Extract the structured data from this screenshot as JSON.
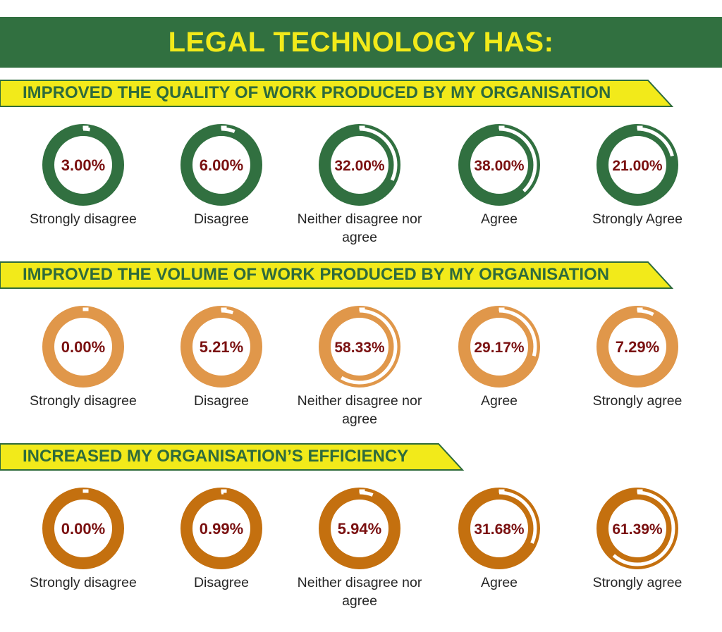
{
  "title": "LEGAL TECHNOLOGY HAS:",
  "colors": {
    "title_bg": "#317040",
    "title_text": "#f2ea1a",
    "banner_fill": "#f2ea1a",
    "banner_text": "#2e6b3c",
    "value_text": "#7a1010",
    "label_text": "#262626"
  },
  "chart_data": [
    {
      "type": "donut",
      "title": "IMPROVED THE QUALITY OF WORK PRODUCED BY MY ORGANISATION",
      "ring_color": "#317040",
      "categories": [
        "Strongly disagree",
        "Disagree",
        "Neither disagree nor agree",
        "Agree",
        "Strongly Agree"
      ],
      "values": [
        3.0,
        6.0,
        32.0,
        38.0,
        21.0
      ],
      "value_labels": [
        "3.00%",
        "6.00%",
        "32.00%",
        "38.00%",
        "21.00%"
      ]
    },
    {
      "type": "donut",
      "title": "IMPROVED THE VOLUME OF WORK PRODUCED BY MY ORGANISATION",
      "ring_color": "#e0974a",
      "categories": [
        "Strongly disagree",
        "Disagree",
        "Neither disagree nor agree",
        "Agree",
        "Strongly agree"
      ],
      "values": [
        0.0,
        5.21,
        58.33,
        29.17,
        7.29
      ],
      "value_labels": [
        "0.00%",
        "5.21%",
        "58.33%",
        "29.17%",
        "7.29%"
      ]
    },
    {
      "type": "donut",
      "title": "INCREASED MY ORGANISATION’S EFFICIENCY",
      "ring_color": "#c4700f",
      "categories": [
        "Strongly disagree",
        "Disagree",
        "Neither disagree nor agree",
        "Agree",
        "Strongly agree"
      ],
      "values": [
        0.0,
        0.99,
        5.94,
        31.68,
        61.39
      ],
      "value_labels": [
        "0.00%",
        "0.99%",
        "5.94%",
        "31.68%",
        "61.39%"
      ]
    }
  ]
}
